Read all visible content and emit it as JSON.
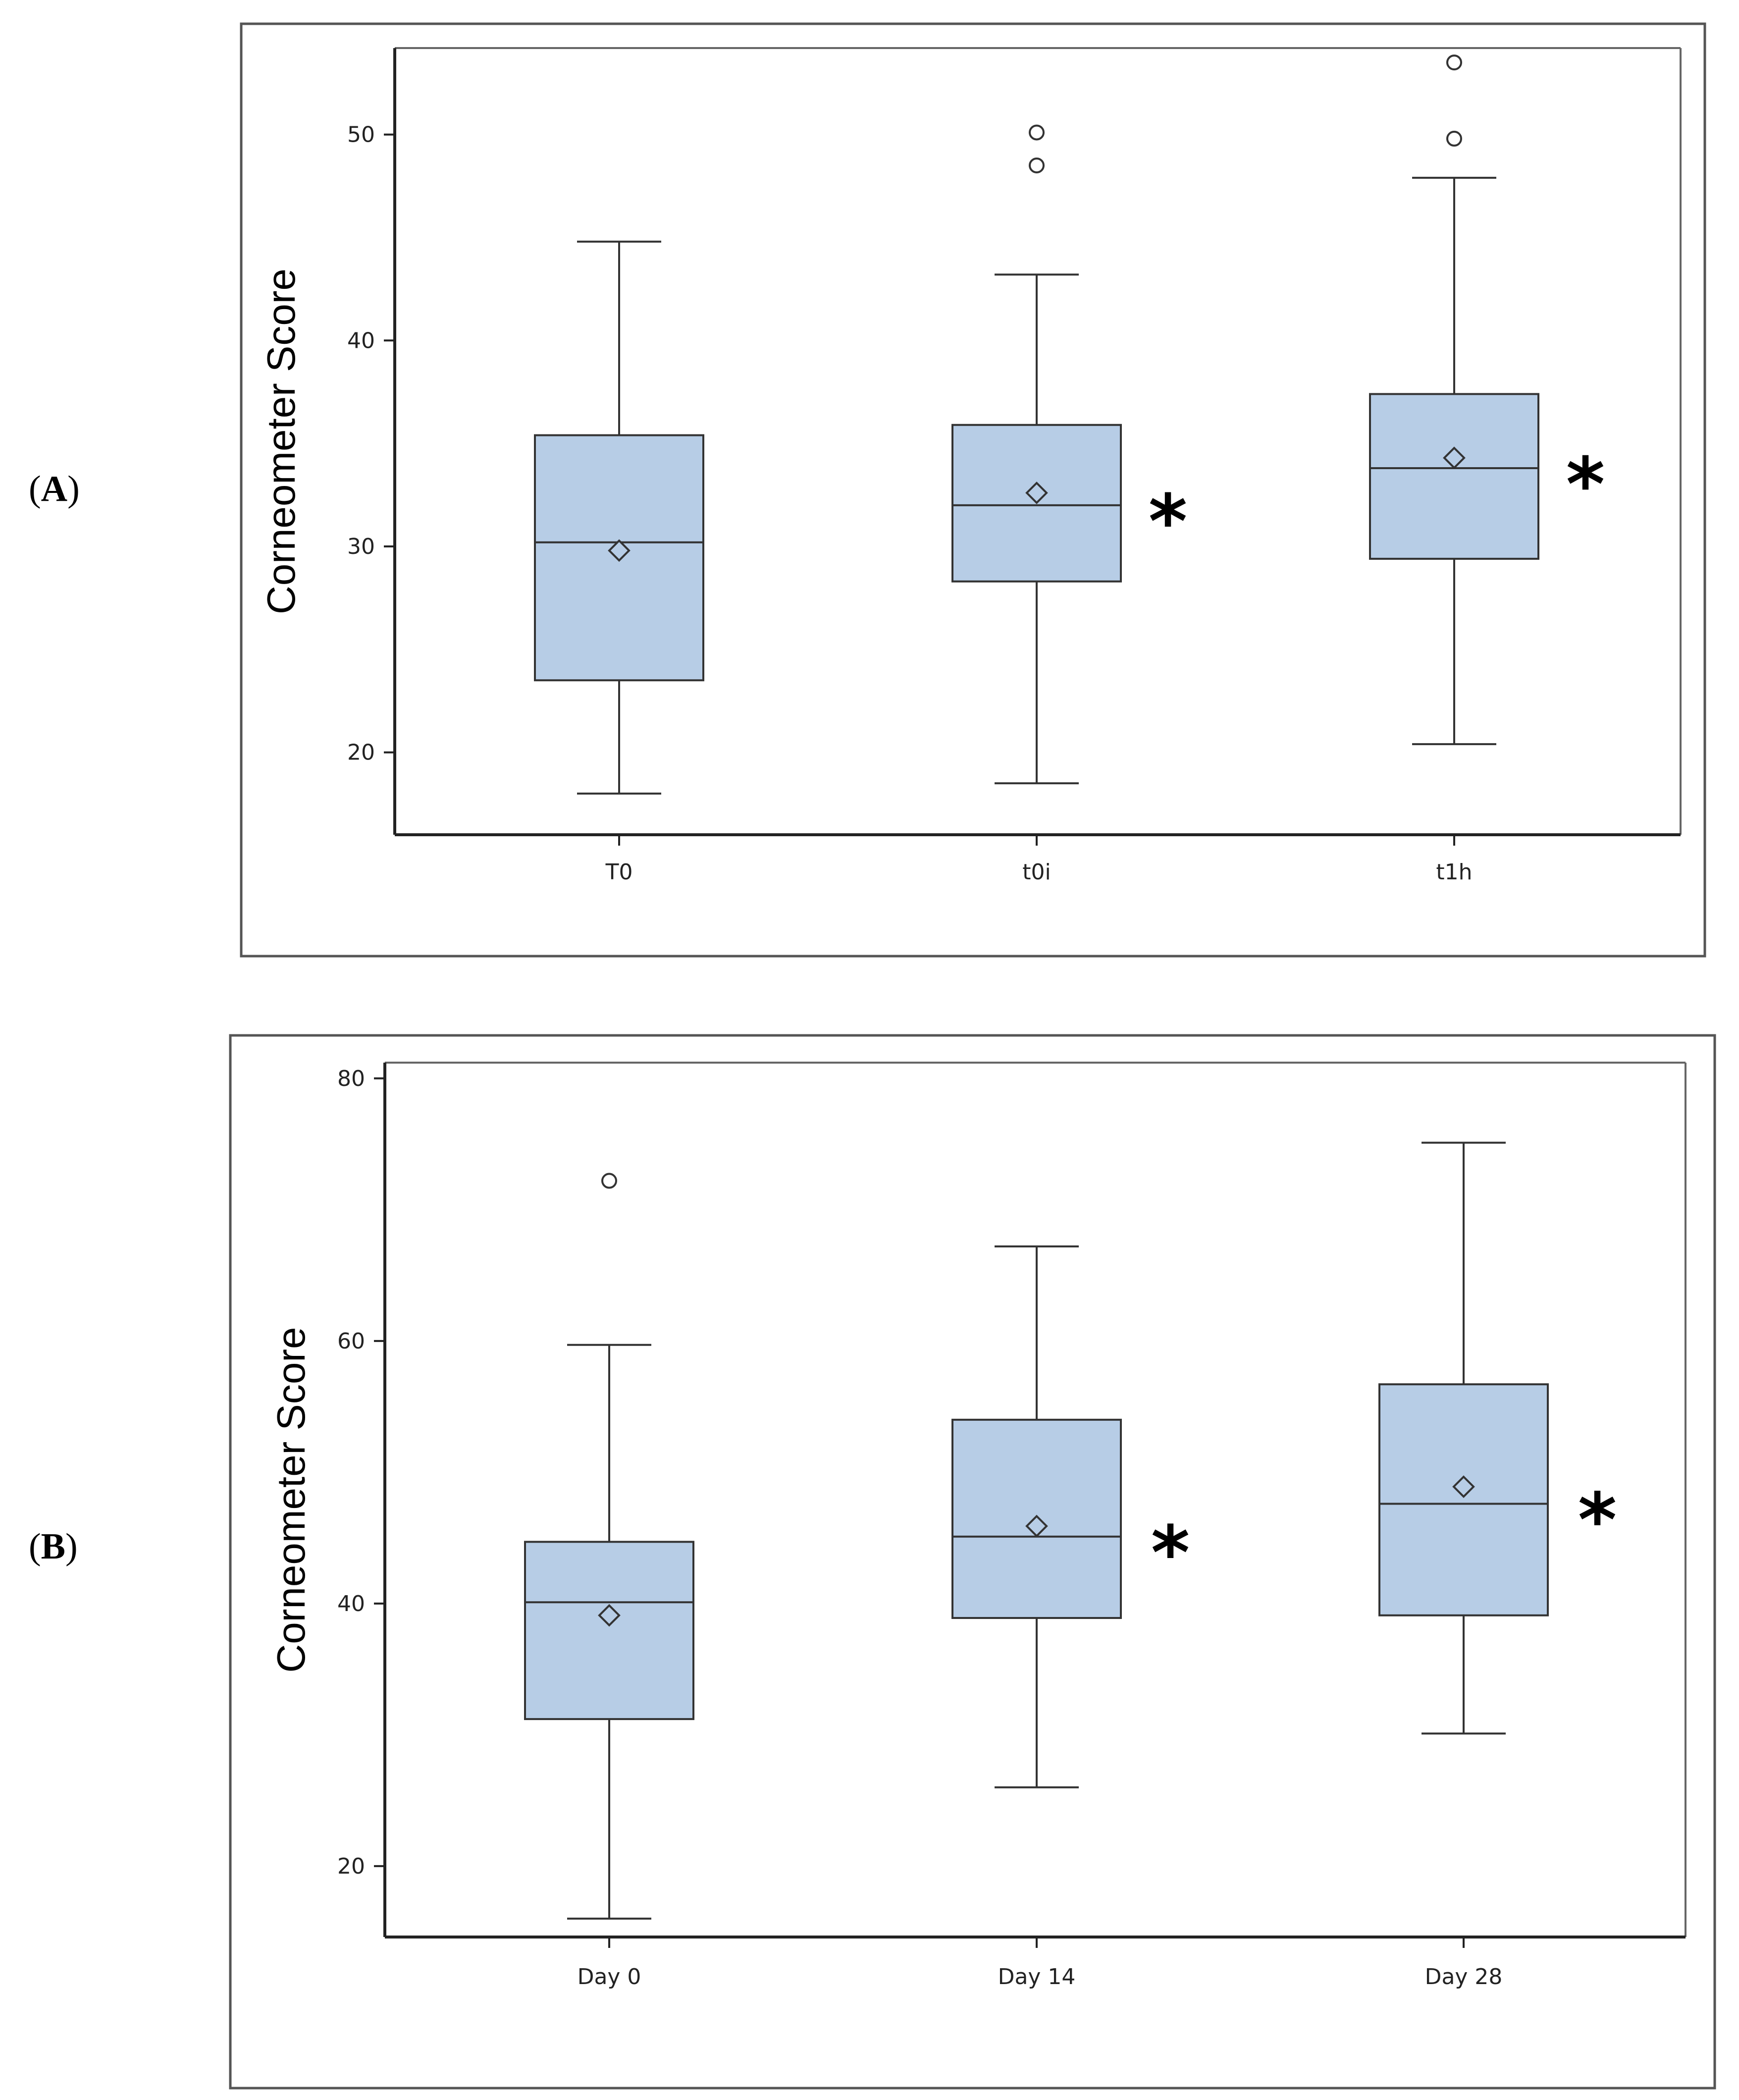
{
  "panels": [
    {
      "open": "(",
      "letter": "A",
      "close": ")"
    },
    {
      "open": "(",
      "letter": "B",
      "close": ")"
    }
  ],
  "colors": {
    "box_fill": "#b7cde6",
    "stroke": "#333333",
    "frame": "#555555"
  },
  "chart_data": [
    {
      "type": "box",
      "panel": "A",
      "ylabel": "Corneometer Score",
      "ylim": [
        16,
        54.2
      ],
      "yticks": [
        20,
        30,
        40,
        50
      ],
      "categories": [
        "T0",
        "t0i",
        "t1h"
      ],
      "boxes": [
        {
          "category": "T0",
          "whisker_low": 18,
          "q1": 23.5,
          "median": 30.2,
          "q3": 35.4,
          "whisker_high": 44.8,
          "mean": 29.8,
          "outliers": [],
          "significance": ""
        },
        {
          "category": "t0i",
          "whisker_low": 18.5,
          "q1": 28.3,
          "median": 32,
          "q3": 35.9,
          "whisker_high": 43.2,
          "mean": 32.6,
          "outliers": [
            48.5,
            50.1
          ],
          "significance": "*"
        },
        {
          "category": "t1h",
          "whisker_low": 20.4,
          "q1": 29.4,
          "median": 33.8,
          "q3": 37.4,
          "whisker_high": 47.9,
          "mean": 34.3,
          "outliers": [
            49.8,
            53.5
          ],
          "significance": "*"
        }
      ]
    },
    {
      "type": "box",
      "panel": "B",
      "ylabel": "Corneometer Score",
      "ylim": [
        14.6,
        81.2
      ],
      "yticks": [
        20,
        40,
        60,
        80
      ],
      "categories": [
        "Day 0",
        "Day 14",
        "Day 28"
      ],
      "boxes": [
        {
          "category": "Day 0",
          "whisker_low": 16,
          "q1": 31.2,
          "median": 40.1,
          "q3": 44.7,
          "whisker_high": 59.7,
          "mean": 39.1,
          "outliers": [
            72.2
          ],
          "significance": ""
        },
        {
          "category": "Day 14",
          "whisker_low": 26,
          "q1": 38.9,
          "median": 45.1,
          "q3": 54,
          "whisker_high": 67.2,
          "mean": 45.9,
          "outliers": [],
          "significance": "*"
        },
        {
          "category": "Day 28",
          "whisker_low": 30.1,
          "q1": 39.1,
          "median": 47.6,
          "q3": 56.7,
          "whisker_high": 75.1,
          "mean": 48.9,
          "outliers": [],
          "significance": "*"
        }
      ]
    }
  ]
}
